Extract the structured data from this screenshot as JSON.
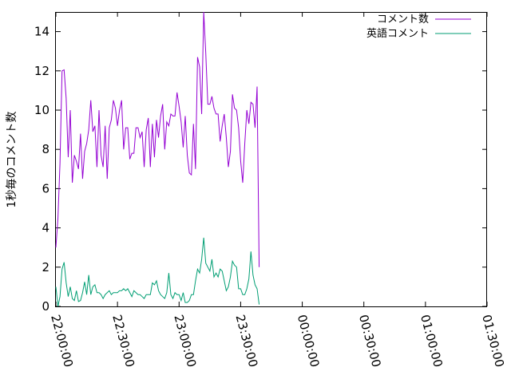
{
  "chart_data": {
    "type": "line",
    "ylabel": "1秒毎のコメント数",
    "ylim": [
      0,
      15
    ],
    "xlim": [
      "22:00:00",
      "01:30:00"
    ],
    "x_scale": "time (per minute)",
    "y_ticks": [
      "0",
      "2",
      "4",
      "6",
      "8",
      "10",
      "12",
      "14"
    ],
    "x_ticks": [
      "22:00:00",
      "22:30:00",
      "23:00:00",
      "23:30:00",
      "00:00:00",
      "00:30:00",
      "01:00:00",
      "01:30:00"
    ],
    "legend_position": "top-right",
    "grid": false,
    "series": [
      {
        "name": "コメント数",
        "color": "#9400d3",
        "x_start": "22:00:00",
        "x_step_minutes": 1,
        "values": [
          3.0,
          4.5,
          7.3,
          12.0,
          12.05,
          10.6,
          7.6,
          10.0,
          6.3,
          7.7,
          7.4,
          7.0,
          8.8,
          6.5,
          7.9,
          8.3,
          9.0,
          10.5,
          8.9,
          9.2,
          7.1,
          10.0,
          7.7,
          7.1,
          9.2,
          6.5,
          9.1,
          9.5,
          10.5,
          10.1,
          9.2,
          10.0,
          10.5,
          8.0,
          9.1,
          9.1,
          7.5,
          7.8,
          7.8,
          9.1,
          9.1,
          8.6,
          8.9,
          7.1,
          9.0,
          9.6,
          7.1,
          9.3,
          7.6,
          9.5,
          8.6,
          9.7,
          10.3,
          8.0,
          9.4,
          9.2,
          9.8,
          9.7,
          9.7,
          10.9,
          10.2,
          9.4,
          8.1,
          9.7,
          7.7,
          6.8,
          6.7,
          9.3,
          7.0,
          12.7,
          12.2,
          9.8,
          15.0,
          12.9,
          10.3,
          10.3,
          10.7,
          10.1,
          9.8,
          9.8,
          8.4,
          9.2,
          9.8,
          8.6,
          7.1,
          7.9,
          10.8,
          10.1,
          10.0,
          9.1,
          7.4,
          6.3,
          8.3,
          10.0,
          9.3,
          10.4,
          10.3,
          9.1,
          11.2,
          2.0
        ]
      },
      {
        "name": "英語コメント",
        "color": "#009e73",
        "x_start": "22:00:00",
        "x_step_minutes": 1,
        "values": [
          1.0,
          0.0,
          0.5,
          1.9,
          2.25,
          1.2,
          0.5,
          1.0,
          0.4,
          0.3,
          0.8,
          0.25,
          0.3,
          0.7,
          1.25,
          0.6,
          1.6,
          0.6,
          1.0,
          1.1,
          0.7,
          0.7,
          0.6,
          0.4,
          0.6,
          0.7,
          0.8,
          0.6,
          0.7,
          0.7,
          0.7,
          0.8,
          0.8,
          0.9,
          0.8,
          0.9,
          0.7,
          0.5,
          0.8,
          0.7,
          0.6,
          0.6,
          0.5,
          0.4,
          0.6,
          0.6,
          0.6,
          1.2,
          1.1,
          1.3,
          0.8,
          0.6,
          0.5,
          0.4,
          0.7,
          1.7,
          0.6,
          0.4,
          0.7,
          0.6,
          0.6,
          0.3,
          0.7,
          0.2,
          0.2,
          0.3,
          0.6,
          0.6,
          1.3,
          1.9,
          1.7,
          2.4,
          3.5,
          2.2,
          2.0,
          1.8,
          2.4,
          1.5,
          1.7,
          1.5,
          1.9,
          1.8,
          1.3,
          0.8,
          1.0,
          1.5,
          2.3,
          2.1,
          2.0,
          0.9,
          0.9,
          0.6,
          0.6,
          0.9,
          1.4,
          2.8,
          1.6,
          1.1,
          0.9,
          0.1
        ]
      }
    ]
  }
}
